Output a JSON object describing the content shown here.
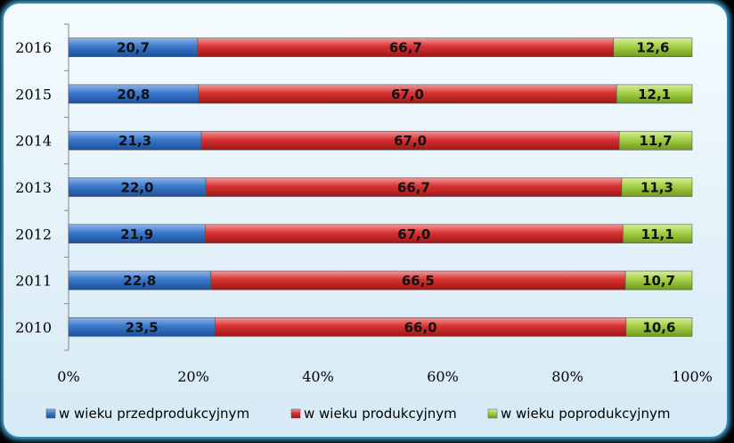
{
  "chart_data": {
    "type": "bar",
    "orientation": "horizontal",
    "stacking": "percent",
    "categories": [
      "2010",
      "2011",
      "2012",
      "2013",
      "2014",
      "2015",
      "2016"
    ],
    "series": [
      {
        "name": "w wieku przedprodukcyjnym",
        "color": "#2f6fc4",
        "values": [
          23.5,
          22.8,
          21.9,
          22.0,
          21.3,
          20.8,
          20.7
        ],
        "labels": [
          "23,5",
          "22,8",
          "21,9",
          "22,0",
          "21,3",
          "20,8",
          "20,7"
        ]
      },
      {
        "name": "w wieku produkcyjnym",
        "color": "#d22a2a",
        "values": [
          66.0,
          66.5,
          67.0,
          66.7,
          67.0,
          67.0,
          66.7
        ],
        "labels": [
          "66,0",
          "66,5",
          "67,0",
          "66,7",
          "67,0",
          "67,0",
          "66,7"
        ]
      },
      {
        "name": "w wieku poprodukcyjnym",
        "color": "#9bc83a",
        "values": [
          10.6,
          10.7,
          11.1,
          11.3,
          11.7,
          12.1,
          12.6
        ],
        "labels": [
          "10,6",
          "10,7",
          "11,1",
          "11,3",
          "11,7",
          "12,1",
          "12,6"
        ]
      }
    ],
    "xticks": [
      "0%",
      "20%",
      "40%",
      "60%",
      "80%",
      "100%"
    ],
    "xlim": [
      0,
      100
    ],
    "legend_position": "bottom",
    "grid": false
  }
}
